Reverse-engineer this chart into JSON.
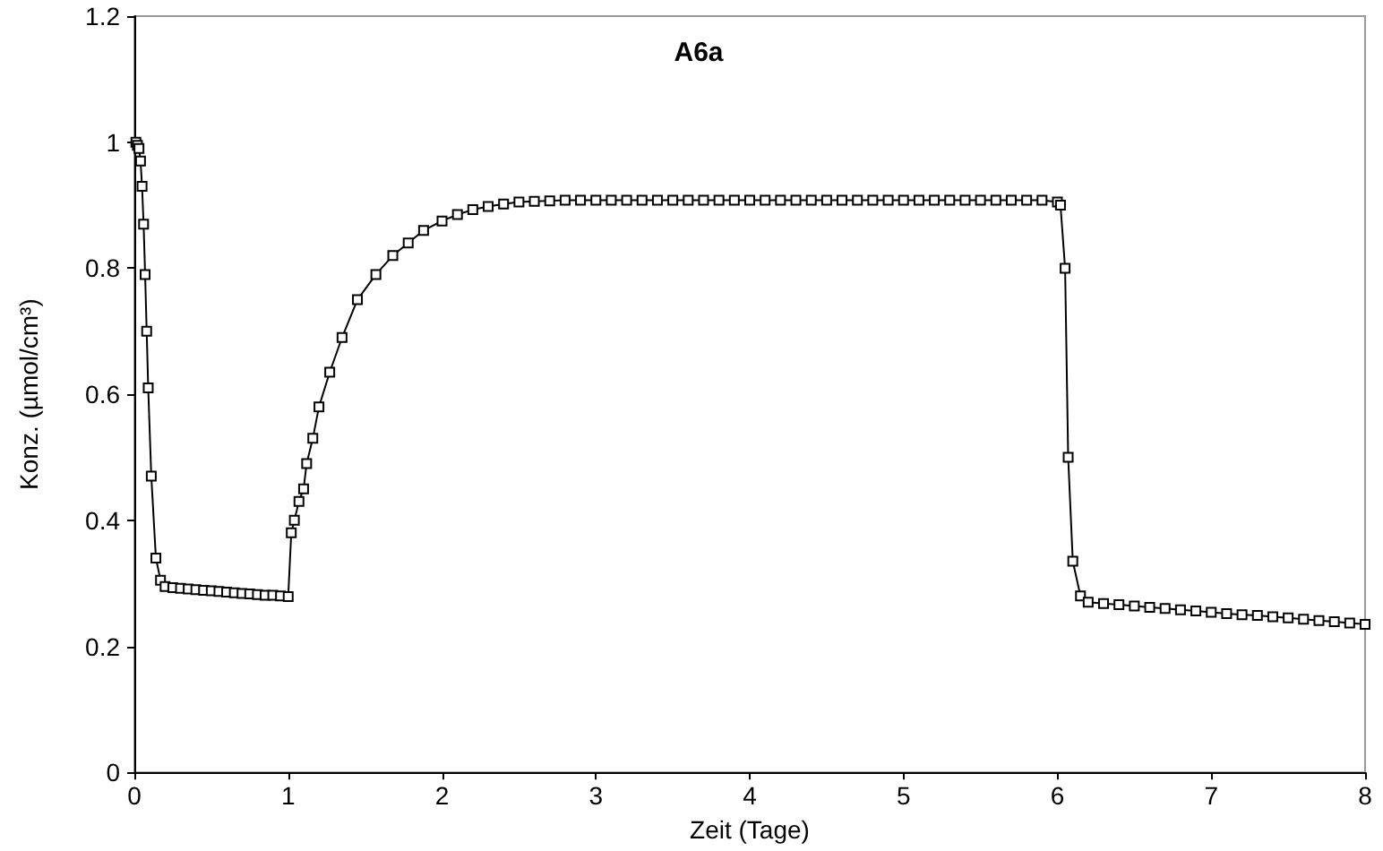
{
  "chart_data": {
    "type": "line",
    "title": "A6a",
    "xlabel": "Zeit (Tage)",
    "ylabel": "Konz. (µmol/cm³)",
    "x": [
      0.01,
      0.02,
      0.03,
      0.04,
      0.05,
      0.06,
      0.07,
      0.08,
      0.09,
      0.11,
      0.14,
      0.17,
      0.2,
      0.25,
      0.3,
      0.35,
      0.4,
      0.45,
      0.5,
      0.55,
      0.6,
      0.65,
      0.7,
      0.75,
      0.8,
      0.85,
      0.9,
      0.95,
      1.0,
      1.02,
      1.04,
      1.07,
      1.1,
      1.12,
      1.16,
      1.2,
      1.27,
      1.35,
      1.45,
      1.57,
      1.68,
      1.78,
      1.88,
      2.0,
      2.1,
      2.2,
      2.3,
      2.4,
      2.5,
      2.6,
      2.7,
      2.8,
      2.9,
      3.0,
      3.1,
      3.2,
      3.3,
      3.4,
      3.5,
      3.6,
      3.7,
      3.8,
      3.9,
      4.0,
      4.1,
      4.2,
      4.3,
      4.4,
      4.5,
      4.6,
      4.7,
      4.8,
      4.9,
      5.0,
      5.1,
      5.2,
      5.3,
      5.4,
      5.5,
      5.6,
      5.7,
      5.8,
      5.9,
      6.0,
      6.02,
      6.05,
      6.07,
      6.1,
      6.15,
      6.2,
      6.3,
      6.4,
      6.5,
      6.6,
      6.7,
      6.8,
      6.9,
      7.0,
      7.1,
      7.2,
      7.3,
      7.4,
      7.5,
      7.6,
      7.7,
      7.8,
      7.9,
      8.0
    ],
    "series": [
      {
        "color": "#000000",
        "values": [
          1.0,
          0.995,
          0.99,
          0.97,
          0.93,
          0.87,
          0.79,
          0.7,
          0.61,
          0.47,
          0.34,
          0.305,
          0.295,
          0.293,
          0.292,
          0.291,
          0.29,
          0.289,
          0.288,
          0.287,
          0.286,
          0.285,
          0.284,
          0.283,
          0.282,
          0.281,
          0.281,
          0.28,
          0.279,
          0.38,
          0.4,
          0.43,
          0.45,
          0.49,
          0.53,
          0.58,
          0.635,
          0.69,
          0.75,
          0.79,
          0.82,
          0.84,
          0.86,
          0.875,
          0.885,
          0.893,
          0.898,
          0.902,
          0.905,
          0.906,
          0.907,
          0.908,
          0.908,
          0.908,
          0.908,
          0.908,
          0.908,
          0.908,
          0.908,
          0.908,
          0.908,
          0.908,
          0.908,
          0.908,
          0.908,
          0.908,
          0.908,
          0.908,
          0.908,
          0.908,
          0.908,
          0.908,
          0.908,
          0.908,
          0.908,
          0.908,
          0.908,
          0.908,
          0.908,
          0.908,
          0.908,
          0.908,
          0.908,
          0.905,
          0.9,
          0.8,
          0.5,
          0.335,
          0.28,
          0.27,
          0.268,
          0.266,
          0.264,
          0.262,
          0.26,
          0.258,
          0.256,
          0.254,
          0.252,
          0.25,
          0.249,
          0.247,
          0.245,
          0.243,
          0.241,
          0.239,
          0.237,
          0.235
        ]
      }
    ],
    "xlim": [
      0,
      8
    ],
    "xticks": [
      0,
      1,
      2,
      3,
      4,
      5,
      6,
      7,
      8
    ],
    "ylim": [
      0,
      1.2
    ],
    "yticks": [
      0,
      0.2,
      0.4,
      0.6,
      0.8,
      1,
      1.2
    ],
    "grid": false,
    "marker": "square",
    "line_style": "solid"
  }
}
